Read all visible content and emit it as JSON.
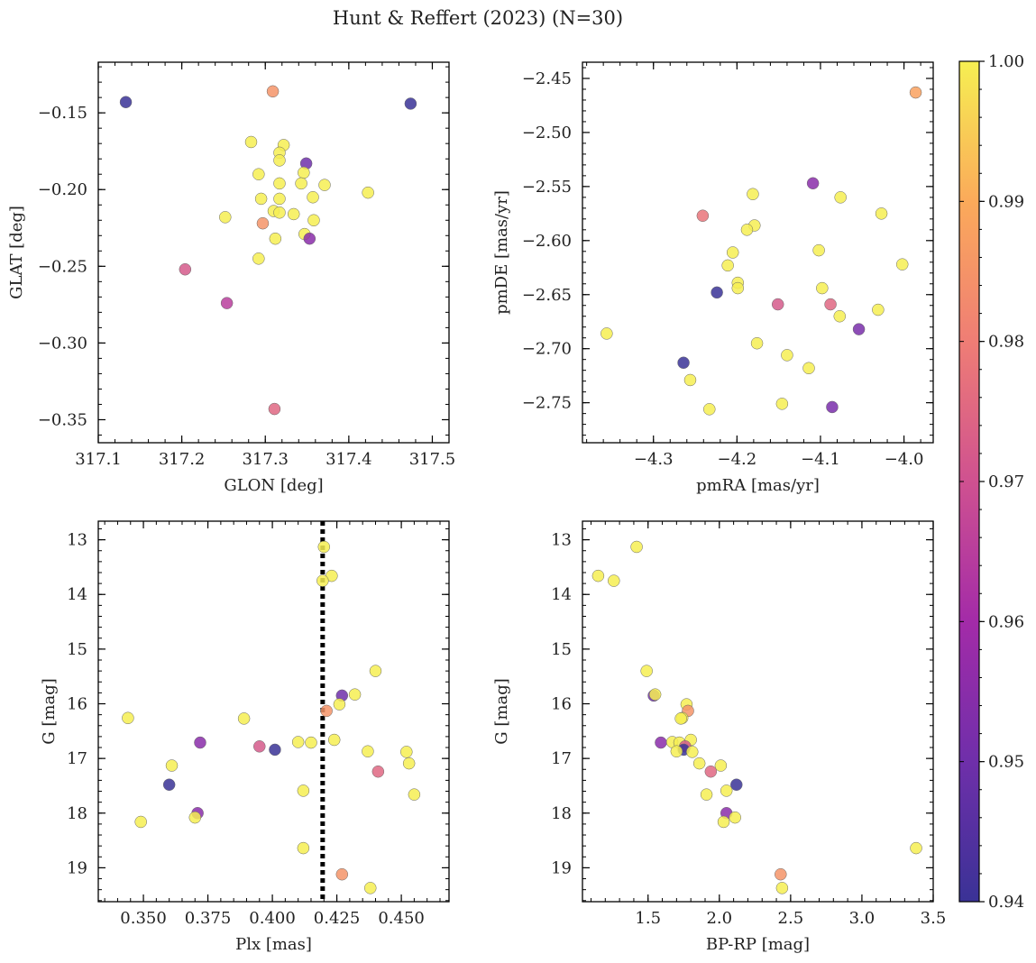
{
  "title": "Hunt & Reffert (2023) (N=30)",
  "colorbar": {
    "min": 0.94,
    "max": 1.0,
    "ticks": [
      0.94,
      0.95,
      0.96,
      0.97,
      0.98,
      0.99,
      1.0
    ],
    "tick_labels": [
      "0.94",
      "0.95",
      "0.96",
      "0.97",
      "0.98",
      "0.99",
      "1.00"
    ],
    "colormap": "plasma",
    "stops": [
      "#3a3296",
      "#6f2faa",
      "#a32ba8",
      "#cf5190",
      "#ef7d75",
      "#fbaa5a",
      "#f6ef52"
    ]
  },
  "chart_data": [
    {
      "id": "glon-glat",
      "type": "scatter",
      "xlabel": "GLON [deg]",
      "ylabel": "GLAT [deg]",
      "xlim": [
        317.1,
        317.52
      ],
      "ylim": [
        -0.365,
        -0.117
      ],
      "xticks": [
        317.1,
        317.2,
        317.3,
        317.4,
        317.5
      ],
      "xtick_labels": [
        "317.1",
        "317.2",
        "317.3",
        "317.4",
        "317.5"
      ],
      "yticks": [
        -0.35,
        -0.3,
        -0.25,
        -0.2,
        -0.15
      ],
      "ytick_labels": [
        "−0.35",
        "−0.30",
        "−0.25",
        "−0.20",
        "−0.15"
      ],
      "points": [
        {
          "x": 317.133,
          "y": -0.143,
          "c": 0.94
        },
        {
          "x": 317.474,
          "y": -0.144,
          "c": 0.94
        },
        {
          "x": 317.309,
          "y": -0.136,
          "c": 0.985
        },
        {
          "x": 317.283,
          "y": -0.169,
          "c": 1.0
        },
        {
          "x": 317.322,
          "y": -0.171,
          "c": 1.0
        },
        {
          "x": 317.317,
          "y": -0.176,
          "c": 1.0
        },
        {
          "x": 317.317,
          "y": -0.181,
          "c": 1.0
        },
        {
          "x": 317.349,
          "y": -0.183,
          "c": 0.95
        },
        {
          "x": 317.346,
          "y": -0.189,
          "c": 1.0
        },
        {
          "x": 317.292,
          "y": -0.19,
          "c": 1.0
        },
        {
          "x": 317.317,
          "y": -0.196,
          "c": 1.0
        },
        {
          "x": 317.343,
          "y": -0.196,
          "c": 1.0
        },
        {
          "x": 317.371,
          "y": -0.197,
          "c": 1.0
        },
        {
          "x": 317.423,
          "y": -0.202,
          "c": 1.0
        },
        {
          "x": 317.295,
          "y": -0.206,
          "c": 1.0
        },
        {
          "x": 317.317,
          "y": -0.206,
          "c": 1.0
        },
        {
          "x": 317.357,
          "y": -0.205,
          "c": 1.0
        },
        {
          "x": 317.31,
          "y": -0.214,
          "c": 1.0
        },
        {
          "x": 317.317,
          "y": -0.215,
          "c": 1.0
        },
        {
          "x": 317.334,
          "y": -0.216,
          "c": 1.0
        },
        {
          "x": 317.252,
          "y": -0.218,
          "c": 1.0
        },
        {
          "x": 317.358,
          "y": -0.22,
          "c": 1.0
        },
        {
          "x": 317.297,
          "y": -0.222,
          "c": 0.985
        },
        {
          "x": 317.347,
          "y": -0.229,
          "c": 1.0
        },
        {
          "x": 317.312,
          "y": -0.232,
          "c": 1.0
        },
        {
          "x": 317.353,
          "y": -0.232,
          "c": 0.955
        },
        {
          "x": 317.292,
          "y": -0.245,
          "c": 1.0
        },
        {
          "x": 317.204,
          "y": -0.252,
          "c": 0.972
        },
        {
          "x": 317.254,
          "y": -0.274,
          "c": 0.965
        },
        {
          "x": 317.311,
          "y": -0.343,
          "c": 0.975
        }
      ]
    },
    {
      "id": "pmra-pmde",
      "type": "scatter",
      "xlabel": "pmRA [mas/yr]",
      "ylabel": "pmDE [mas/yr]",
      "xlim": [
        -4.385,
        -3.965
      ],
      "ylim": [
        -2.787,
        -2.435
      ],
      "xticks": [
        -4.3,
        -4.2,
        -4.1,
        -4.0
      ],
      "xtick_labels": [
        "−4.3",
        "−4.2",
        "−4.1",
        "−4.0"
      ],
      "yticks": [
        -2.75,
        -2.7,
        -2.65,
        -2.6,
        -2.55,
        -2.5,
        -2.45
      ],
      "ytick_labels": [
        "−2.75",
        "−2.70",
        "−2.65",
        "−2.60",
        "−2.55",
        "−2.50",
        "−2.45"
      ],
      "points": [
        {
          "x": -3.986,
          "y": -2.463,
          "c": 0.988
        },
        {
          "x": -4.109,
          "y": -2.547,
          "c": 0.955
        },
        {
          "x": -4.076,
          "y": -2.56,
          "c": 1.0
        },
        {
          "x": -4.181,
          "y": -2.557,
          "c": 1.0
        },
        {
          "x": -4.027,
          "y": -2.575,
          "c": 1.0
        },
        {
          "x": -4.241,
          "y": -2.577,
          "c": 0.978
        },
        {
          "x": -4.179,
          "y": -2.586,
          "c": 1.0
        },
        {
          "x": -4.188,
          "y": -2.59,
          "c": 1.0
        },
        {
          "x": -4.102,
          "y": -2.609,
          "c": 1.0
        },
        {
          "x": -4.205,
          "y": -2.611,
          "c": 1.0
        },
        {
          "x": -4.211,
          "y": -2.623,
          "c": 1.0
        },
        {
          "x": -4.002,
          "y": -2.622,
          "c": 1.0
        },
        {
          "x": -4.199,
          "y": -2.639,
          "c": 1.0
        },
        {
          "x": -4.199,
          "y": -2.644,
          "c": 1.0
        },
        {
          "x": -4.098,
          "y": -2.644,
          "c": 1.0
        },
        {
          "x": -4.224,
          "y": -2.648,
          "c": 0.94
        },
        {
          "x": -4.151,
          "y": -2.659,
          "c": 0.972
        },
        {
          "x": -4.088,
          "y": -2.659,
          "c": 0.975
        },
        {
          "x": -4.031,
          "y": -2.664,
          "c": 1.0
        },
        {
          "x": -4.077,
          "y": -2.67,
          "c": 1.0
        },
        {
          "x": -4.054,
          "y": -2.682,
          "c": 0.952
        },
        {
          "x": -4.356,
          "y": -2.686,
          "c": 1.0
        },
        {
          "x": -4.176,
          "y": -2.695,
          "c": 1.0
        },
        {
          "x": -4.14,
          "y": -2.706,
          "c": 1.0
        },
        {
          "x": -4.264,
          "y": -2.713,
          "c": 0.94
        },
        {
          "x": -4.114,
          "y": -2.718,
          "c": 1.0
        },
        {
          "x": -4.256,
          "y": -2.729,
          "c": 1.0
        },
        {
          "x": -4.146,
          "y": -2.751,
          "c": 1.0
        },
        {
          "x": -4.086,
          "y": -2.754,
          "c": 0.952
        },
        {
          "x": -4.233,
          "y": -2.756,
          "c": 1.0
        }
      ]
    },
    {
      "id": "plx-g",
      "type": "scatter",
      "xlabel": "Plx [mas]",
      "ylabel": "G [mag]",
      "xlim": [
        0.3325,
        0.4685
      ],
      "ylim": [
        19.62,
        12.66
      ],
      "y_inverted": true,
      "xticks": [
        0.35,
        0.375,
        0.4,
        0.425,
        0.45
      ],
      "xtick_labels": [
        "0.350",
        "0.375",
        "0.400",
        "0.425",
        "0.450"
      ],
      "yticks": [
        13,
        14,
        15,
        16,
        17,
        18,
        19
      ],
      "ytick_labels": [
        "13",
        "14",
        "15",
        "16",
        "17",
        "18",
        "19"
      ],
      "vline": {
        "x": 0.4195,
        "style": "dotted"
      },
      "points": [
        {
          "x": 0.42,
          "y": 13.13,
          "c": 1.0
        },
        {
          "x": 0.423,
          "y": 13.66,
          "c": 1.0
        },
        {
          "x": 0.4195,
          "y": 13.75,
          "c": 1.0
        },
        {
          "x": 0.44,
          "y": 15.4,
          "c": 1.0
        },
        {
          "x": 0.427,
          "y": 15.85,
          "c": 0.95
        },
        {
          "x": 0.432,
          "y": 15.83,
          "c": 1.0
        },
        {
          "x": 0.426,
          "y": 16.01,
          "c": 1.0
        },
        {
          "x": 0.421,
          "y": 16.13,
          "c": 0.985
        },
        {
          "x": 0.344,
          "y": 16.26,
          "c": 1.0
        },
        {
          "x": 0.389,
          "y": 16.27,
          "c": 1.0
        },
        {
          "x": 0.41,
          "y": 16.7,
          "c": 1.0
        },
        {
          "x": 0.415,
          "y": 16.71,
          "c": 1.0
        },
        {
          "x": 0.424,
          "y": 16.66,
          "c": 1.0
        },
        {
          "x": 0.372,
          "y": 16.71,
          "c": 0.955
        },
        {
          "x": 0.395,
          "y": 16.78,
          "c": 0.972
        },
        {
          "x": 0.401,
          "y": 16.84,
          "c": 0.94
        },
        {
          "x": 0.437,
          "y": 16.87,
          "c": 1.0
        },
        {
          "x": 0.452,
          "y": 16.88,
          "c": 1.0
        },
        {
          "x": 0.361,
          "y": 17.13,
          "c": 1.0
        },
        {
          "x": 0.453,
          "y": 17.09,
          "c": 1.0
        },
        {
          "x": 0.441,
          "y": 17.24,
          "c": 0.975
        },
        {
          "x": 0.36,
          "y": 17.48,
          "c": 0.94
        },
        {
          "x": 0.412,
          "y": 17.59,
          "c": 1.0
        },
        {
          "x": 0.455,
          "y": 17.66,
          "c": 1.0
        },
        {
          "x": 0.371,
          "y": 18.0,
          "c": 0.955
        },
        {
          "x": 0.37,
          "y": 18.08,
          "c": 1.0
        },
        {
          "x": 0.349,
          "y": 18.16,
          "c": 1.0
        },
        {
          "x": 0.412,
          "y": 18.64,
          "c": 1.0
        },
        {
          "x": 0.427,
          "y": 19.12,
          "c": 0.985
        },
        {
          "x": 0.438,
          "y": 19.37,
          "c": 1.0
        }
      ]
    },
    {
      "id": "bprp-g",
      "type": "scatter",
      "xlabel": "BP-RP [mag]",
      "ylabel": "G [mag]",
      "xlim": [
        1.04,
        3.5
      ],
      "ylim": [
        19.62,
        12.66
      ],
      "y_inverted": true,
      "xticks": [
        1.5,
        2.0,
        2.5,
        3.0,
        3.5
      ],
      "xtick_labels": [
        "1.5",
        "2.0",
        "2.5",
        "3.0",
        "3.5"
      ],
      "yticks": [
        13,
        14,
        15,
        16,
        17,
        18,
        19
      ],
      "ytick_labels": [
        "13",
        "14",
        "15",
        "16",
        "17",
        "18",
        "19"
      ],
      "points": [
        {
          "x": 1.42,
          "y": 13.13,
          "c": 1.0
        },
        {
          "x": 1.15,
          "y": 13.66,
          "c": 1.0
        },
        {
          "x": 1.26,
          "y": 13.75,
          "c": 1.0
        },
        {
          "x": 1.49,
          "y": 15.4,
          "c": 1.0
        },
        {
          "x": 1.54,
          "y": 15.85,
          "c": 0.95
        },
        {
          "x": 1.55,
          "y": 15.83,
          "c": 1.0
        },
        {
          "x": 1.77,
          "y": 16.01,
          "c": 1.0
        },
        {
          "x": 1.78,
          "y": 16.13,
          "c": 0.985
        },
        {
          "x": 1.74,
          "y": 16.26,
          "c": 1.0
        },
        {
          "x": 1.73,
          "y": 16.27,
          "c": 1.0
        },
        {
          "x": 1.59,
          "y": 16.71,
          "c": 0.955
        },
        {
          "x": 1.67,
          "y": 16.7,
          "c": 1.0
        },
        {
          "x": 1.72,
          "y": 16.71,
          "c": 1.0
        },
        {
          "x": 1.8,
          "y": 16.66,
          "c": 1.0
        },
        {
          "x": 1.76,
          "y": 16.78,
          "c": 0.972
        },
        {
          "x": 1.75,
          "y": 16.84,
          "c": 0.94
        },
        {
          "x": 1.7,
          "y": 16.87,
          "c": 1.0
        },
        {
          "x": 1.81,
          "y": 16.88,
          "c": 1.0
        },
        {
          "x": 2.01,
          "y": 17.13,
          "c": 1.0
        },
        {
          "x": 1.86,
          "y": 17.09,
          "c": 1.0
        },
        {
          "x": 1.94,
          "y": 17.24,
          "c": 0.975
        },
        {
          "x": 2.12,
          "y": 17.48,
          "c": 0.94
        },
        {
          "x": 2.05,
          "y": 17.59,
          "c": 1.0
        },
        {
          "x": 1.91,
          "y": 17.66,
          "c": 1.0
        },
        {
          "x": 2.05,
          "y": 18.0,
          "c": 0.955
        },
        {
          "x": 2.11,
          "y": 18.08,
          "c": 1.0
        },
        {
          "x": 2.03,
          "y": 18.16,
          "c": 1.0
        },
        {
          "x": 3.38,
          "y": 18.64,
          "c": 1.0
        },
        {
          "x": 2.43,
          "y": 19.12,
          "c": 0.985
        },
        {
          "x": 2.44,
          "y": 19.37,
          "c": 1.0
        }
      ]
    }
  ]
}
